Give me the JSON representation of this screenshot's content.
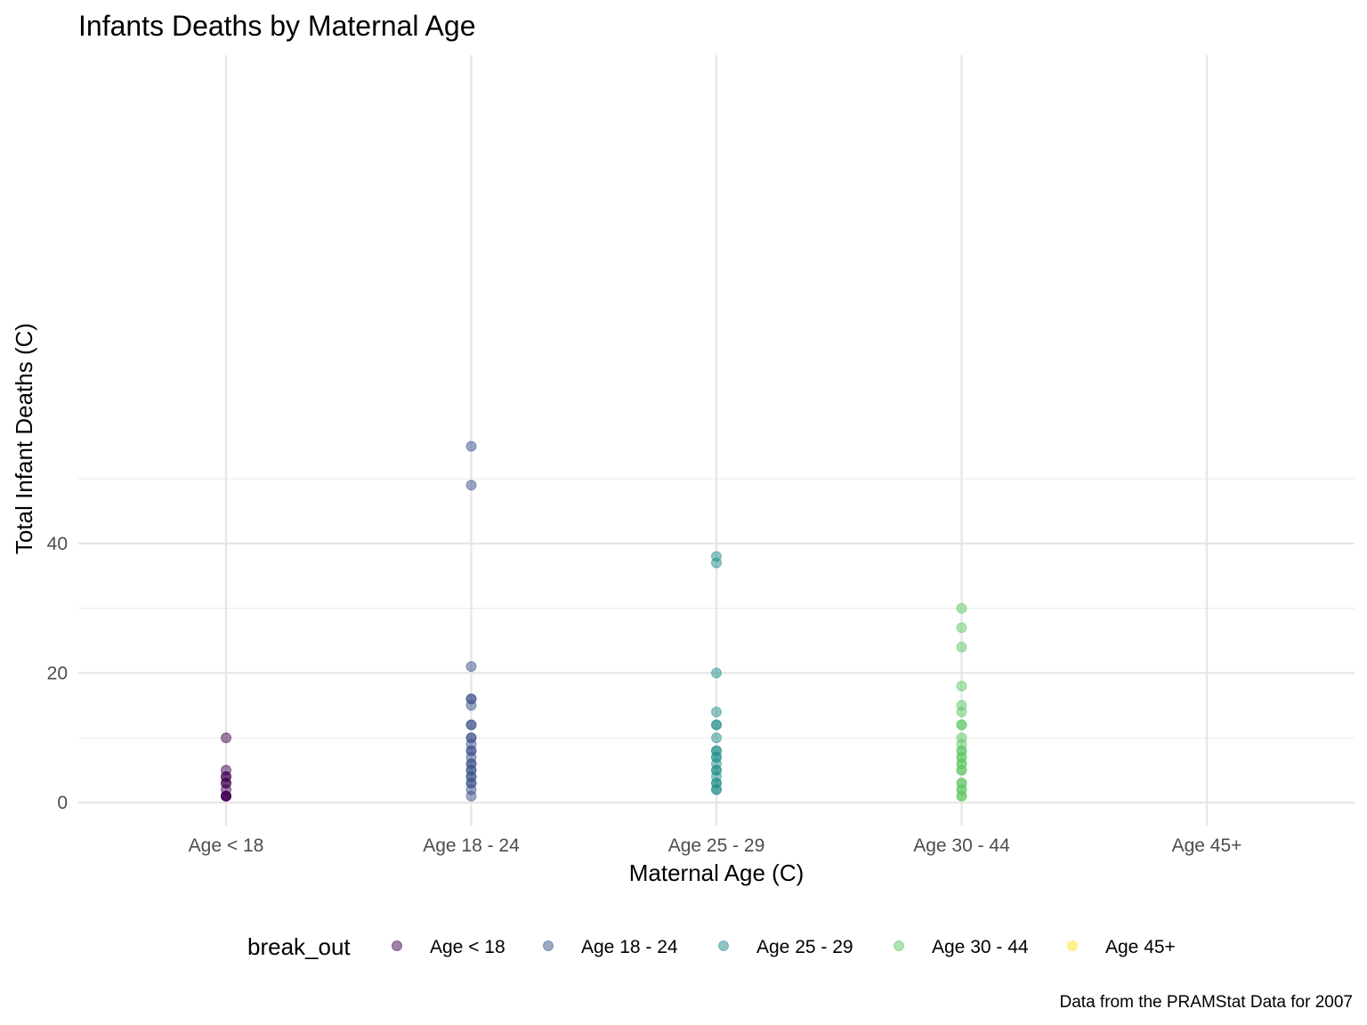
{
  "chart_data": {
    "type": "scatter",
    "title": "Infants Deaths by Maternal Age",
    "xlabel": "Maternal Age (C)",
    "ylabel": "Total Infant Deaths (C)",
    "caption": "Data from the PRAMStat Data for 2007",
    "categories": [
      "Age < 18",
      "Age 18 - 24",
      "Age 25 - 29",
      "Age 30 - 44",
      "Age 45+"
    ],
    "y_ticks": [
      0,
      20,
      40
    ],
    "ylim": [
      -1.6,
      57.6
    ],
    "grid": true,
    "legend": {
      "title": "break_out",
      "position": "bottom",
      "entries": [
        "Age < 18",
        "Age 18 - 24",
        "Age 25 - 29",
        "Age 30 - 44",
        "Age 45+"
      ]
    },
    "point_alpha": 0.5,
    "series": [
      {
        "name": "Age < 18",
        "color": "#440154",
        "x": "Age < 18",
        "values": [
          10,
          5,
          4,
          4,
          3,
          3,
          2,
          1,
          1,
          1,
          1
        ]
      },
      {
        "name": "Age 18 - 24",
        "color": "#3B528B",
        "x": "Age 18 - 24",
        "values": [
          55,
          49,
          21,
          16,
          16,
          15,
          12,
          12,
          10,
          10,
          9,
          8,
          8,
          7,
          6,
          6,
          5,
          5,
          4,
          4,
          3,
          3,
          2,
          1
        ]
      },
      {
        "name": "Age 25 - 29",
        "color": "#21908C",
        "x": "Age 25 - 29",
        "values": [
          38,
          37,
          20,
          14,
          12,
          12,
          10,
          8,
          8,
          7,
          7,
          6,
          5,
          5,
          4,
          3,
          3,
          2,
          2
        ]
      },
      {
        "name": "Age 30 - 44",
        "color": "#5DC863",
        "x": "Age 30 - 44",
        "values": [
          30,
          27,
          24,
          18,
          15,
          14,
          12,
          12,
          10,
          9,
          8,
          8,
          7,
          7,
          6,
          6,
          5,
          5,
          3,
          3,
          2,
          2,
          1,
          1
        ]
      },
      {
        "name": "Age 45+",
        "color": "#FDE725",
        "x": "Age 45+",
        "values": []
      }
    ]
  }
}
